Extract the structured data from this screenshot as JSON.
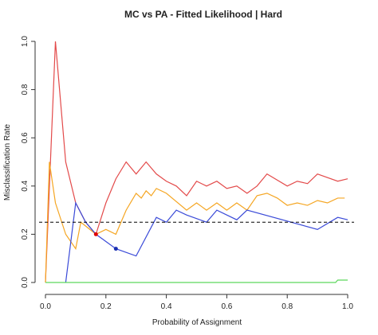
{
  "chart_data": {
    "type": "line",
    "title": "MC vs PA - Fitted Likelihood | Hard",
    "x_label": "Probability of Assignment",
    "y_label": "Misclassification Rate",
    "xlim": [
      0,
      1
    ],
    "ylim": [
      0,
      1
    ],
    "xticks": [
      {
        "value": 0,
        "label": "0.0"
      },
      {
        "value": 0.2,
        "label": "0.2"
      },
      {
        "value": 0.4,
        "label": "0.4"
      },
      {
        "value": 0.6,
        "label": "0.6"
      },
      {
        "value": 0.8,
        "label": "0.8"
      },
      {
        "value": 1,
        "label": "1.0"
      }
    ],
    "yticks": [
      {
        "value": 0,
        "label": "0.0"
      },
      {
        "value": 0.2,
        "label": "0.2"
      },
      {
        "value": 0.4,
        "label": "0.4"
      },
      {
        "value": 0.6,
        "label": "0.6"
      },
      {
        "value": 0.8,
        "label": "0.8"
      },
      {
        "value": 1,
        "label": "1.0"
      }
    ],
    "hline": {
      "value": 0.25,
      "color": "#000000"
    },
    "series": [
      {
        "color": "#e34a4a",
        "x": [
          0,
          0.033,
          0.067,
          0.1,
          0.133,
          0.167,
          0.2,
          0.233,
          0.267,
          0.3,
          0.333,
          0.367,
          0.4,
          0.433,
          0.467,
          0.5,
          0.533,
          0.567,
          0.6,
          0.633,
          0.667,
          0.7,
          0.733,
          0.8,
          0.833,
          0.867,
          0.9,
          0.967,
          1
        ],
        "values": [
          0,
          1.0,
          0.5,
          0.33,
          0.25,
          0.2,
          0.33,
          0.43,
          0.5,
          0.45,
          0.5,
          0.45,
          0.42,
          0.4,
          0.36,
          0.42,
          0.4,
          0.42,
          0.39,
          0.4,
          0.37,
          0.4,
          0.45,
          0.4,
          0.42,
          0.41,
          0.45,
          0.42,
          0.43
        ]
      },
      {
        "color": "#f5a623",
        "x": [
          0,
          0.013,
          0.033,
          0.067,
          0.1,
          0.117,
          0.167,
          0.2,
          0.233,
          0.267,
          0.3,
          0.317,
          0.333,
          0.35,
          0.367,
          0.4,
          0.467,
          0.5,
          0.533,
          0.567,
          0.6,
          0.633,
          0.667,
          0.7,
          0.733,
          0.767,
          0.8,
          0.833,
          0.867,
          0.9,
          0.933,
          0.967,
          0.99
        ],
        "values": [
          0,
          0.5,
          0.33,
          0.2,
          0.14,
          0.25,
          0.2,
          0.22,
          0.2,
          0.3,
          0.37,
          0.35,
          0.38,
          0.36,
          0.39,
          0.37,
          0.3,
          0.33,
          0.3,
          0.33,
          0.3,
          0.33,
          0.3,
          0.36,
          0.37,
          0.35,
          0.32,
          0.33,
          0.32,
          0.34,
          0.33,
          0.35,
          0.35
        ]
      },
      {
        "color": "#3b4bd8",
        "x": [
          0.067,
          0.1,
          0.133,
          0.167,
          0.2,
          0.233,
          0.3,
          0.367,
          0.4,
          0.433,
          0.467,
          0.533,
          0.567,
          0.6,
          0.633,
          0.667,
          0.9,
          0.967,
          1
        ],
        "values": [
          0,
          0.33,
          0.25,
          0.2,
          0.17,
          0.14,
          0.11,
          0.27,
          0.25,
          0.3,
          0.28,
          0.25,
          0.3,
          0.28,
          0.26,
          0.3,
          0.22,
          0.27,
          0.26
        ]
      },
      {
        "color": "#5cd65c",
        "x": [
          0,
          0.96,
          0.967,
          1
        ],
        "values": [
          0,
          0,
          0.01,
          0.01
        ]
      }
    ],
    "points": [
      {
        "x": 0.167,
        "y": 0.2,
        "color": "#e00000"
      },
      {
        "x": 0.233,
        "y": 0.14,
        "color": "#1a2fb0"
      }
    ]
  }
}
